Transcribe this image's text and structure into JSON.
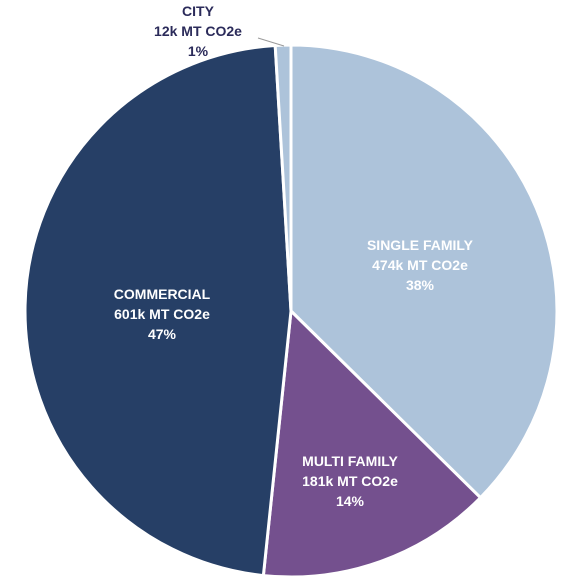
{
  "chart_data": {
    "type": "pie",
    "title": "",
    "slices": [
      {
        "label": "SINGLE FAMILY",
        "value_text": "474k MT CO2e",
        "percent_text": "38%",
        "value": 474,
        "color": "#adc3da",
        "label_color": "#ffffff"
      },
      {
        "label": "MULTI FAMILY",
        "value_text": "181k MT CO2e",
        "percent_text": "14%",
        "value": 181,
        "color": "#74508e",
        "label_color": "#ffffff"
      },
      {
        "label": "COMMERCIAL",
        "value_text": "601k MT CO2e",
        "percent_text": "47%",
        "value": 601,
        "color": "#263f66",
        "label_color": "#ffffff"
      },
      {
        "label": "CITY",
        "value_text": "12k MT CO2e",
        "percent_text": "1%",
        "value": 12,
        "color": "#adc3da",
        "label_color": "#2b2b5a"
      }
    ],
    "start_angle_deg": 0,
    "direction": "clockwise",
    "legend": "none"
  }
}
